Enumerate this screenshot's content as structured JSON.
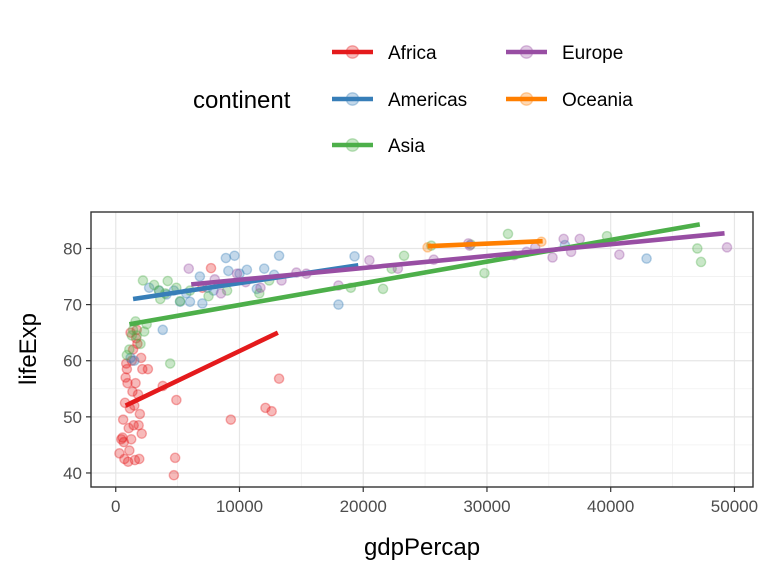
{
  "chart_data": {
    "type": "scatter",
    "xlabel": "gdpPercap",
    "ylabel": "lifeExp",
    "xlim": [
      -2000,
      51500
    ],
    "ylim": [
      37.5,
      86.5
    ],
    "xticks": [
      0,
      10000,
      20000,
      30000,
      40000,
      50000
    ],
    "yticks": [
      40,
      50,
      60,
      70,
      80
    ],
    "xtick_labels": [
      "0",
      "10000",
      "20000",
      "30000",
      "40000",
      "50000"
    ],
    "ytick_labels": [
      "40",
      "50",
      "60",
      "70",
      "80"
    ],
    "grid": true,
    "legend": {
      "title": "continent",
      "placement": "top",
      "entries": [
        "Africa",
        "Americas",
        "Asia",
        "Europe",
        "Oceania"
      ]
    },
    "series": [
      {
        "name": "Africa",
        "color": "#e41a1c",
        "trend": [
          [
            800,
            52.0
          ],
          [
            13100,
            65.0
          ]
        ],
        "points": [
          [
            300,
            43.5
          ],
          [
            450,
            46.0
          ],
          [
            550,
            46.3
          ],
          [
            600,
            49.5
          ],
          [
            650,
            45.5
          ],
          [
            700,
            42.5
          ],
          [
            750,
            52.5
          ],
          [
            800,
            57.0
          ],
          [
            850,
            59.5
          ],
          [
            900,
            58.5
          ],
          [
            950,
            56.0
          ],
          [
            1000,
            42.0
          ],
          [
            1050,
            48.0
          ],
          [
            1100,
            44.0
          ],
          [
            1150,
            51.5
          ],
          [
            1200,
            65.0
          ],
          [
            1250,
            46.0
          ],
          [
            1300,
            60.0
          ],
          [
            1350,
            54.5
          ],
          [
            1400,
            62.0
          ],
          [
            1450,
            48.5
          ],
          [
            1500,
            52.0
          ],
          [
            1550,
            42.3
          ],
          [
            1600,
            56.0
          ],
          [
            1650,
            64.0
          ],
          [
            1700,
            65.5
          ],
          [
            1750,
            63.0
          ],
          [
            1800,
            54.0
          ],
          [
            1850,
            48.5
          ],
          [
            1900,
            42.5
          ],
          [
            1950,
            50.5
          ],
          [
            2050,
            60.5
          ],
          [
            2100,
            47.0
          ],
          [
            2150,
            58.5
          ],
          [
            2600,
            58.5
          ],
          [
            3800,
            55.5
          ],
          [
            4700,
            39.6
          ],
          [
            4800,
            42.7
          ],
          [
            4900,
            53.0
          ],
          [
            7000,
            73.0
          ],
          [
            7700,
            76.5
          ],
          [
            9300,
            49.5
          ],
          [
            12100,
            51.6
          ],
          [
            12600,
            51.0
          ],
          [
            13200,
            56.8
          ]
        ]
      },
      {
        "name": "Americas",
        "color": "#377eb8",
        "trend": [
          [
            1400,
            71.0
          ],
          [
            19600,
            77.0
          ]
        ],
        "points": [
          [
            1200,
            60.5
          ],
          [
            1500,
            60.0
          ],
          [
            2700,
            73.0
          ],
          [
            3500,
            72.5
          ],
          [
            3800,
            65.5
          ],
          [
            4100,
            71.8
          ],
          [
            4700,
            72.5
          ],
          [
            5200,
            70.5
          ],
          [
            5700,
            72.0
          ],
          [
            6000,
            70.5
          ],
          [
            6800,
            75.0
          ],
          [
            7000,
            70.2
          ],
          [
            7400,
            73.0
          ],
          [
            7900,
            72.5
          ],
          [
            8900,
            78.3
          ],
          [
            9100,
            76.0
          ],
          [
            9600,
            78.7
          ],
          [
            10000,
            75.5
          ],
          [
            10600,
            76.2
          ],
          [
            11400,
            72.8
          ],
          [
            12000,
            76.4
          ],
          [
            12800,
            75.3
          ],
          [
            13200,
            78.7
          ],
          [
            18000,
            70.0
          ],
          [
            19300,
            78.6
          ],
          [
            36300,
            80.6
          ],
          [
            42900,
            78.2
          ]
        ]
      },
      {
        "name": "Asia",
        "color": "#4daf4a",
        "trend": [
          [
            1100,
            66.5
          ],
          [
            47200,
            84.3
          ]
        ],
        "points": [
          [
            900,
            61.0
          ],
          [
            1100,
            62.0
          ],
          [
            1300,
            64.5
          ],
          [
            1400,
            65.5
          ],
          [
            1600,
            67.0
          ],
          [
            1700,
            64.5
          ],
          [
            2000,
            63.0
          ],
          [
            2200,
            74.3
          ],
          [
            2300,
            65.2
          ],
          [
            2500,
            66.5
          ],
          [
            3100,
            73.5
          ],
          [
            3500,
            72.5
          ],
          [
            3600,
            71.0
          ],
          [
            4000,
            72.0
          ],
          [
            4200,
            74.2
          ],
          [
            4400,
            59.5
          ],
          [
            4900,
            73.0
          ],
          [
            5200,
            70.6
          ],
          [
            6000,
            72.5
          ],
          [
            7500,
            71.5
          ],
          [
            9000,
            72.5
          ],
          [
            11600,
            72.0
          ],
          [
            12400,
            74.3
          ],
          [
            19000,
            73.0
          ],
          [
            21600,
            72.8
          ],
          [
            22300,
            76.4
          ],
          [
            23300,
            78.7
          ],
          [
            25500,
            80.5
          ],
          [
            28700,
            80.7
          ],
          [
            29800,
            75.6
          ],
          [
            31700,
            82.6
          ],
          [
            39700,
            82.2
          ],
          [
            47000,
            80.0
          ],
          [
            47300,
            77.6
          ]
        ]
      },
      {
        "name": "Europe",
        "color": "#984ea3",
        "trend": [
          [
            6100,
            73.6
          ],
          [
            49200,
            82.7
          ]
        ],
        "points": [
          [
            5900,
            76.4
          ],
          [
            8000,
            74.5
          ],
          [
            8500,
            72.0
          ],
          [
            9800,
            75.5
          ],
          [
            10500,
            74.0
          ],
          [
            11700,
            73.0
          ],
          [
            13400,
            74.3
          ],
          [
            14600,
            75.7
          ],
          [
            15400,
            75.5
          ],
          [
            18000,
            73.4
          ],
          [
            20500,
            77.9
          ],
          [
            22800,
            76.4
          ],
          [
            25700,
            78.0
          ],
          [
            28500,
            80.9
          ],
          [
            28600,
            80.5
          ],
          [
            32200,
            78.8
          ],
          [
            33200,
            79.4
          ],
          [
            33900,
            80.2
          ],
          [
            35300,
            78.4
          ],
          [
            36200,
            81.7
          ],
          [
            36800,
            79.4
          ],
          [
            37500,
            81.7
          ],
          [
            40700,
            78.9
          ],
          [
            49400,
            80.2
          ]
        ]
      },
      {
        "name": "Oceania",
        "color": "#ff7f00",
        "trend": [
          [
            25200,
            80.4
          ],
          [
            34500,
            81.3
          ]
        ],
        "points": [
          [
            25200,
            80.2
          ],
          [
            34400,
            81.2
          ]
        ]
      }
    ]
  }
}
